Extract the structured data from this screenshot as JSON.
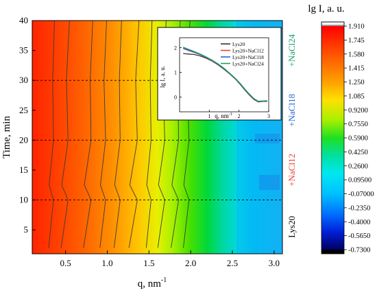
{
  "chart_data": [
    {
      "type": "heatmap",
      "xlabel": "q, nm",
      "xlabel_sup": "-1",
      "ylabel": "Time, min",
      "xlim": [
        0.1,
        3.1
      ],
      "ylim": [
        1,
        40
      ],
      "xticks": [
        "0.5",
        "1.0",
        "1.5",
        "2.0",
        "2.5",
        "3.0"
      ],
      "xtick_values": [
        0.5,
        1.0,
        1.5,
        2.0,
        2.5,
        3.0
      ],
      "yticks": [
        "5",
        "10",
        "15",
        "20",
        "25",
        "30",
        "35",
        "40"
      ],
      "ytick_values": [
        5,
        10,
        15,
        20,
        25,
        30,
        35,
        40
      ],
      "colorbar": {
        "title": "lg I, a. u.",
        "ticks": [
          "1.910",
          "1.745",
          "1.580",
          "1.415",
          "1.250",
          "1.085",
          "0.9200",
          "0.7550",
          "0.5900",
          "0.4250",
          "0.2600",
          "0.09500",
          "-0.07000",
          "-0.2350",
          "-0.4000",
          "-0.5650",
          "-0.7300"
        ],
        "tick_values": [
          1.91,
          1.745,
          1.58,
          1.415,
          1.25,
          1.085,
          0.92,
          0.755,
          0.59,
          0.425,
          0.26,
          0.095,
          -0.07,
          -0.235,
          -0.4,
          -0.565,
          -0.73
        ]
      },
      "dashed_lines_time": [
        10,
        20,
        30
      ],
      "segment_labels": [
        {
          "text": "Lys20",
          "from": 1,
          "to": 10,
          "color": "#000000"
        },
        {
          "text": "+NaCl12",
          "from": 10,
          "to": 20,
          "color": "#e8413c"
        },
        {
          "text": "+NaCl18",
          "from": 20,
          "to": 30,
          "color": "#2a63d8"
        },
        {
          "text": "+NaCl24",
          "from": 30,
          "to": 40,
          "color": "#1aa06a"
        }
      ],
      "contour_q_positions": [
        0.35,
        0.52,
        0.8,
        0.97,
        1.15,
        1.35,
        1.52,
        1.68,
        1.85,
        1.97
      ],
      "contour_times": [
        2,
        10,
        12.5,
        20,
        30,
        40
      ],
      "contour_shifts_nm": [
        -0.08,
        0,
        -0.07,
        0,
        0,
        0.02
      ]
    },
    {
      "type": "line",
      "xlabel": "q, nm",
      "xlabel_sup": "-1",
      "ylabel": "lg I, a. u.",
      "xlim": [
        0,
        3
      ],
      "ylim": [
        -0.6,
        2.4
      ],
      "xticks": [
        "1",
        "2",
        "3"
      ],
      "xtick_values": [
        1,
        2,
        3
      ],
      "yticks": [
        "0",
        "1",
        "2"
      ],
      "ytick_values": [
        0,
        1,
        2
      ],
      "legend_position": "top-right",
      "series": [
        {
          "name": "Lys20",
          "color": "#333333",
          "x": [
            0.12,
            0.3,
            0.5,
            0.7,
            0.9,
            1.1,
            1.3,
            1.5,
            1.7,
            1.9,
            2.05,
            2.2,
            2.35,
            2.5,
            2.65,
            2.8,
            2.95
          ],
          "y": [
            1.76,
            1.74,
            1.72,
            1.66,
            1.57,
            1.45,
            1.3,
            1.12,
            0.92,
            0.7,
            0.5,
            0.28,
            0.08,
            -0.1,
            -0.2,
            -0.18,
            -0.18
          ]
        },
        {
          "name": "Lys20+NaCl12",
          "color": "#e8413c",
          "x": [
            0.12,
            0.3,
            0.5,
            0.7,
            0.9,
            1.1,
            1.3,
            1.5,
            1.7,
            1.9,
            2.05,
            2.2,
            2.35,
            2.5,
            2.65,
            2.8,
            2.95
          ],
          "y": [
            1.96,
            1.88,
            1.8,
            1.71,
            1.6,
            1.47,
            1.32,
            1.14,
            0.93,
            0.71,
            0.52,
            0.3,
            0.1,
            -0.08,
            -0.19,
            -0.17,
            -0.17
          ]
        },
        {
          "name": "Lys20+NaCl18",
          "color": "#2a63d8",
          "x": [
            0.12,
            0.3,
            0.5,
            0.7,
            0.9,
            1.1,
            1.3,
            1.5,
            1.7,
            1.9,
            2.05,
            2.2,
            2.35,
            2.5,
            2.65,
            2.8,
            2.95
          ],
          "y": [
            1.98,
            1.9,
            1.82,
            1.72,
            1.61,
            1.48,
            1.33,
            1.15,
            0.94,
            0.72,
            0.53,
            0.31,
            0.11,
            -0.07,
            -0.18,
            -0.17,
            -0.16
          ]
        },
        {
          "name": "Lys20+NaCl24",
          "color": "#1aa06a",
          "x": [
            0.12,
            0.3,
            0.5,
            0.7,
            0.9,
            1.1,
            1.3,
            1.5,
            1.7,
            1.9,
            2.05,
            2.2,
            2.35,
            2.5,
            2.65,
            2.8,
            2.95
          ],
          "y": [
            2.02,
            1.93,
            1.84,
            1.74,
            1.62,
            1.49,
            1.34,
            1.16,
            0.95,
            0.73,
            0.54,
            0.32,
            0.12,
            -0.06,
            -0.17,
            -0.16,
            -0.15
          ]
        }
      ]
    }
  ]
}
